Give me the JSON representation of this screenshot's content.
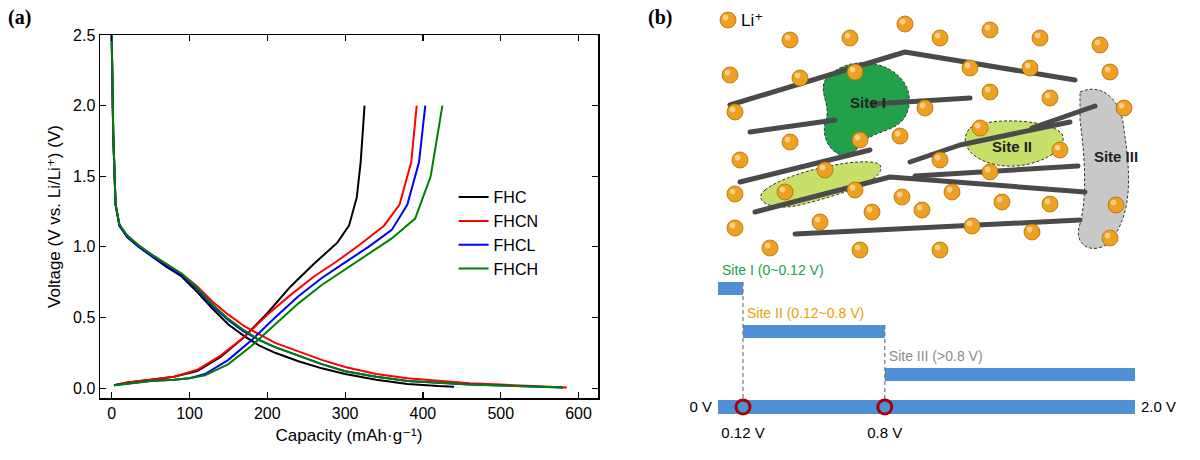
{
  "chart_data": {
    "type": "line",
    "panel": "(a)",
    "x_label": "Capacity (mAh·g⁻¹)",
    "y_label": "Voltage (V vs. Li/Li⁺) (V)",
    "xlim": [
      -15,
      625
    ],
    "ylim": [
      -0.07,
      2.5
    ],
    "xticks": [
      0,
      100,
      200,
      300,
      400,
      500,
      600
    ],
    "yticks": [
      {
        "value": 0,
        "label": "0.0"
      },
      0.5,
      {
        "value": 1,
        "label": "1.0"
      },
      1.5,
      {
        "value": 2,
        "label": "2.0"
      },
      2.5
    ],
    "grid": false,
    "legend": "right",
    "series": [
      {
        "name": "FHC",
        "color": "#000000",
        "x": [
          0,
          2,
          5,
          10,
          20,
          35,
          50,
          70,
          90,
          110,
          130,
          150,
          170,
          190,
          210,
          240,
          270,
          300,
          340,
          380,
          420,
          440,
          null,
          3,
          20,
          50,
          80,
          110,
          140,
          170,
          200,
          230,
          260,
          290,
          305,
          315,
          320,
          325
        ],
        "values": [
          2.5,
          1.8,
          1.3,
          1.15,
          1.07,
          1.0,
          0.94,
          0.86,
          0.79,
          0.68,
          0.56,
          0.45,
          0.37,
          0.3,
          0.25,
          0.19,
          0.14,
          0.1,
          0.06,
          0.03,
          0.015,
          0.01,
          null,
          0.02,
          0.04,
          0.06,
          0.08,
          0.12,
          0.22,
          0.36,
          0.53,
          0.72,
          0.88,
          1.03,
          1.15,
          1.35,
          1.6,
          2.0
        ]
      },
      {
        "name": "FHCN",
        "color": "#ff0000",
        "x": [
          0,
          2,
          5,
          10,
          20,
          35,
          50,
          70,
          90,
          110,
          130,
          150,
          170,
          190,
          210,
          240,
          270,
          300,
          340,
          380,
          420,
          460,
          500,
          540,
          585,
          null,
          3,
          20,
          50,
          80,
          110,
          140,
          170,
          200,
          230,
          260,
          290,
          320,
          350,
          370,
          385,
          392
        ],
        "values": [
          2.5,
          1.8,
          1.3,
          1.15,
          1.08,
          1.01,
          0.95,
          0.88,
          0.81,
          0.72,
          0.61,
          0.52,
          0.44,
          0.38,
          0.32,
          0.26,
          0.2,
          0.15,
          0.1,
          0.07,
          0.05,
          0.035,
          0.025,
          0.015,
          0.005,
          null,
          0.02,
          0.04,
          0.06,
          0.08,
          0.13,
          0.23,
          0.36,
          0.52,
          0.66,
          0.79,
          0.9,
          1.02,
          1.15,
          1.3,
          1.6,
          2.0
        ]
      },
      {
        "name": "FHCL",
        "color": "#0000ff",
        "x": [
          0,
          2,
          5,
          10,
          20,
          35,
          50,
          70,
          90,
          110,
          130,
          150,
          170,
          190,
          210,
          240,
          270,
          300,
          340,
          380,
          420,
          460,
          500,
          540,
          580,
          null,
          3,
          20,
          50,
          80,
          100,
          120,
          150,
          180,
          210,
          240,
          270,
          300,
          330,
          360,
          380,
          395,
          403
        ],
        "values": [
          2.5,
          1.8,
          1.3,
          1.15,
          1.07,
          1.0,
          0.94,
          0.87,
          0.8,
          0.7,
          0.58,
          0.48,
          0.4,
          0.34,
          0.29,
          0.23,
          0.17,
          0.12,
          0.08,
          0.05,
          0.035,
          0.025,
          0.018,
          0.01,
          0.005,
          null,
          0.02,
          0.03,
          0.05,
          0.06,
          0.07,
          0.1,
          0.2,
          0.34,
          0.5,
          0.65,
          0.78,
          0.89,
          1.0,
          1.12,
          1.3,
          1.6,
          2.0
        ]
      },
      {
        "name": "FHCH",
        "color": "#008000",
        "x": [
          0,
          2,
          5,
          10,
          20,
          35,
          50,
          70,
          90,
          110,
          130,
          150,
          170,
          190,
          210,
          240,
          270,
          300,
          340,
          380,
          420,
          460,
          500,
          540,
          580,
          null,
          3,
          20,
          50,
          80,
          100,
          120,
          150,
          180,
          210,
          240,
          270,
          300,
          330,
          360,
          390,
          410,
          425
        ],
        "values": [
          2.5,
          1.8,
          1.3,
          1.16,
          1.08,
          1.01,
          0.95,
          0.88,
          0.81,
          0.71,
          0.59,
          0.49,
          0.41,
          0.34,
          0.29,
          0.23,
          0.17,
          0.12,
          0.08,
          0.05,
          0.035,
          0.025,
          0.018,
          0.01,
          0.005,
          null,
          0.02,
          0.03,
          0.05,
          0.06,
          0.07,
          0.09,
          0.17,
          0.3,
          0.45,
          0.6,
          0.73,
          0.84,
          0.95,
          1.06,
          1.2,
          1.5,
          2.0
        ]
      }
    ]
  },
  "diagram": {
    "panel": "(b)",
    "legend": {
      "text": "Li⁺",
      "color": "#f0a020"
    },
    "sites": [
      {
        "name": "Site I",
        "fill": "#22a04a"
      },
      {
        "name": "Site II",
        "fill": "#c6e06a"
      },
      {
        "name": "Site III",
        "fill": "#c8c8c8"
      }
    ],
    "scale": {
      "min": 0,
      "max": 2.0,
      "bar_color": "#4f8fd6",
      "ranges": [
        {
          "label": "Site I (0~0.12 V)",
          "from": 0,
          "to": 0.12,
          "color": "#22a04a"
        },
        {
          "label": "Site II (0.12~0.8 V)",
          "from": 0.12,
          "to": 0.8,
          "color": "#e8a200"
        },
        {
          "label": "Site III (>0.8 V)",
          "from": 0.8,
          "to": 2.0,
          "color": "#8c8c8c"
        }
      ],
      "markers": [
        0.12,
        0.8
      ],
      "ticks": [
        {
          "value": 0,
          "label": "0 V"
        },
        {
          "value": 0.12,
          "label": "0.12 V"
        },
        {
          "value": 0.8,
          "label": "0.8 V"
        },
        {
          "value": 2.0,
          "label": "2.0 V"
        }
      ]
    }
  }
}
